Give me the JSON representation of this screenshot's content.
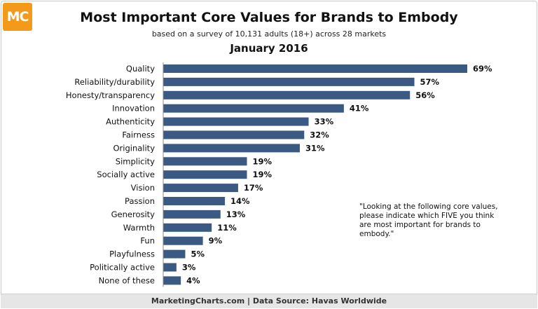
{
  "header": {
    "logo_text": "MC",
    "title": "Most Important Core Values for Brands to Embody",
    "subtitle": "based on a survey of 10,131 adults (18+) across 28 markets",
    "date": "January 2016"
  },
  "note": "\"Looking at the following core values, please indicate which FIVE you think are most important for brands to embody.\"",
  "footer": "MarketingCharts.com | Data Source: Havas Worldwide",
  "colors": {
    "bar": "#3a5a84",
    "logo": "#f39a1b"
  },
  "chart_data": {
    "type": "bar",
    "orientation": "horizontal",
    "categories": [
      "Quality",
      "Reliability/durability",
      "Honesty/transparency",
      "Innovation",
      "Authenticity",
      "Fairness",
      "Originality",
      "Simplicity",
      "Socially active",
      "Vision",
      "Passion",
      "Generosity",
      "Warmth",
      "Fun",
      "Playfulness",
      "Politically active",
      "None of these"
    ],
    "values": [
      69,
      57,
      56,
      41,
      33,
      32,
      31,
      19,
      19,
      17,
      14,
      13,
      11,
      9,
      5,
      3,
      4
    ],
    "value_labels": [
      "69%",
      "57%",
      "56%",
      "41%",
      "33%",
      "32%",
      "31%",
      "19%",
      "19%",
      "17%",
      "14%",
      "13%",
      "11%",
      "9%",
      "5%",
      "3%",
      "4%"
    ],
    "xlim": [
      0,
      69
    ],
    "grid": false
  }
}
